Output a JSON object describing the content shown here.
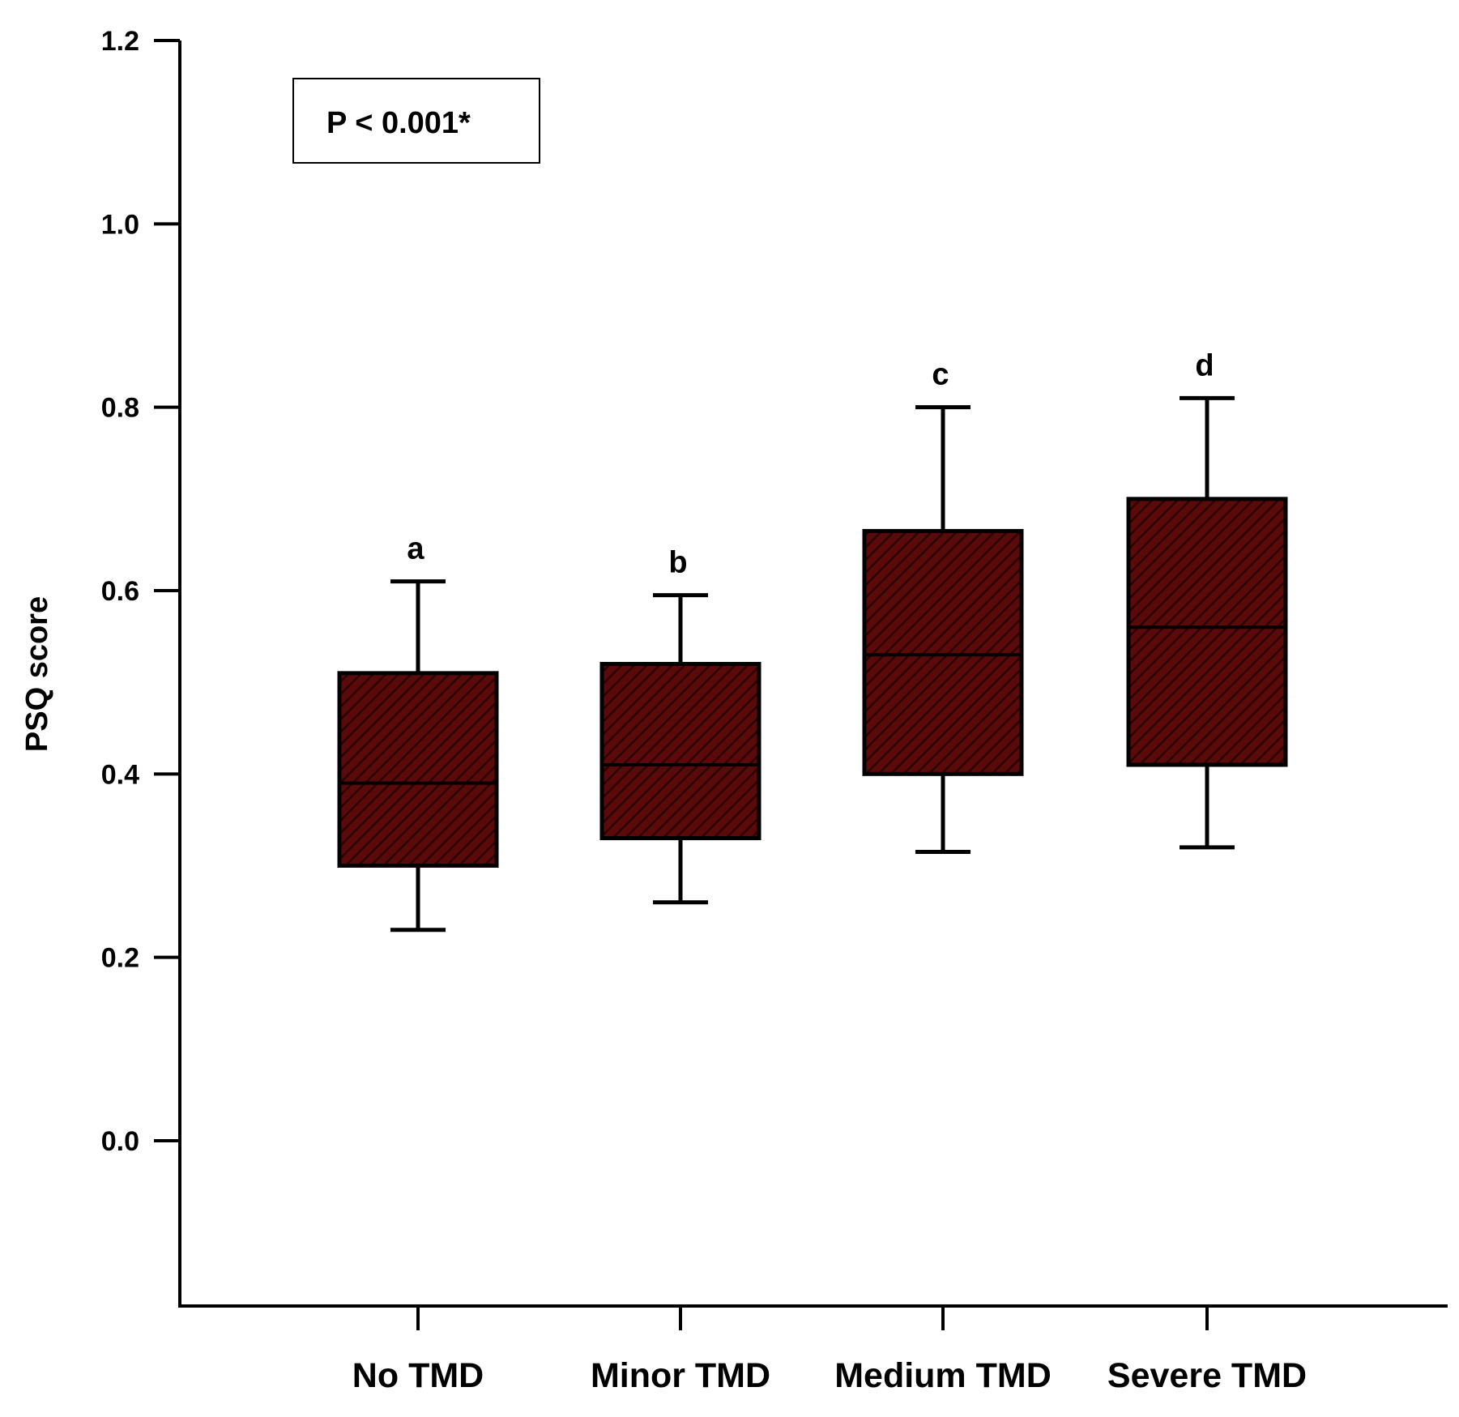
{
  "chart_data": {
    "type": "box",
    "categories": [
      "No TMD",
      "Minor TMD",
      "Medium TMD",
      "Severe TMD"
    ],
    "boxes": [
      {
        "category": "No TMD",
        "whisker_low": 0.23,
        "q1": 0.3,
        "median": 0.39,
        "q3": 0.51,
        "whisker_high": 0.61,
        "group_letter": "a"
      },
      {
        "category": "Minor TMD",
        "whisker_low": 0.26,
        "q1": 0.33,
        "median": 0.41,
        "q3": 0.52,
        "whisker_high": 0.595,
        "group_letter": "b"
      },
      {
        "category": "Medium TMD",
        "whisker_low": 0.315,
        "q1": 0.4,
        "median": 0.53,
        "q3": 0.665,
        "whisker_high": 0.8,
        "group_letter": "c"
      },
      {
        "category": "Severe TMD",
        "whisker_low": 0.32,
        "q1": 0.41,
        "median": 0.56,
        "q3": 0.7,
        "whisker_high": 0.81,
        "group_letter": "d"
      }
    ],
    "title": "",
    "xlabel": "",
    "ylabel": "PSQ score",
    "ylim": [
      -0.18,
      1.2
    ],
    "yticks": [
      0.0,
      0.2,
      0.4,
      0.6,
      0.8,
      1.0,
      1.2
    ],
    "ytick_labels": [
      "0.0",
      "0.2",
      "0.4",
      "0.6",
      "0.8",
      "1.0",
      "1.2"
    ],
    "annotation": "P < 0.001*",
    "grid": false,
    "legend": "none",
    "colors": {
      "box_fill": "#5a0a0a",
      "hatch": "#2a0000",
      "line": "#000000"
    }
  }
}
